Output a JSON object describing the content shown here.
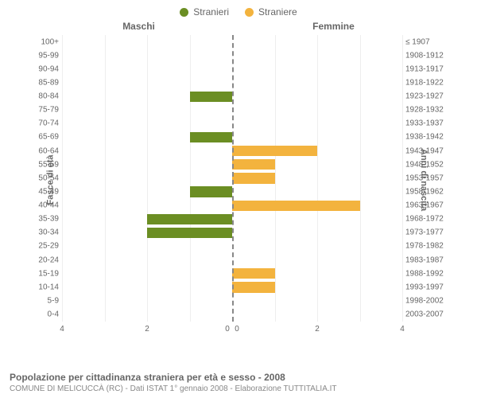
{
  "legend": [
    {
      "label": "Stranieri",
      "color": "#6b8e23"
    },
    {
      "label": "Straniere",
      "color": "#f3b33e"
    }
  ],
  "column_titles": {
    "left": "Maschi",
    "right": "Femmine"
  },
  "axis_titles": {
    "left": "Fasce di età",
    "right": "Anni di nascita"
  },
  "x_max": 4,
  "x_ticks_left": [
    4,
    2,
    0
  ],
  "x_ticks_right": [
    0,
    2,
    4
  ],
  "grid_color": "#eeeeee",
  "center_line_color": "#888888",
  "bar_color_male": "#6b8e23",
  "bar_color_female": "#f3b33e",
  "background_color": "#ffffff",
  "fontsize_tick": 10,
  "fontsize_title": 12,
  "rows": [
    {
      "age": "100+",
      "birth": "≤ 1907",
      "m": 0,
      "f": 0
    },
    {
      "age": "95-99",
      "birth": "1908-1912",
      "m": 0,
      "f": 0
    },
    {
      "age": "90-94",
      "birth": "1913-1917",
      "m": 0,
      "f": 0
    },
    {
      "age": "85-89",
      "birth": "1918-1922",
      "m": 0,
      "f": 0
    },
    {
      "age": "80-84",
      "birth": "1923-1927",
      "m": 1,
      "f": 0
    },
    {
      "age": "75-79",
      "birth": "1928-1932",
      "m": 0,
      "f": 0
    },
    {
      "age": "70-74",
      "birth": "1933-1937",
      "m": 0,
      "f": 0
    },
    {
      "age": "65-69",
      "birth": "1938-1942",
      "m": 1,
      "f": 0
    },
    {
      "age": "60-64",
      "birth": "1943-1947",
      "m": 0,
      "f": 2
    },
    {
      "age": "55-59",
      "birth": "1948-1952",
      "m": 0,
      "f": 1
    },
    {
      "age": "50-54",
      "birth": "1953-1957",
      "m": 0,
      "f": 1
    },
    {
      "age": "45-49",
      "birth": "1958-1962",
      "m": 1,
      "f": 0
    },
    {
      "age": "40-44",
      "birth": "1963-1967",
      "m": 0,
      "f": 3
    },
    {
      "age": "35-39",
      "birth": "1968-1972",
      "m": 2,
      "f": 0
    },
    {
      "age": "30-34",
      "birth": "1973-1977",
      "m": 2,
      "f": 0
    },
    {
      "age": "25-29",
      "birth": "1978-1982",
      "m": 0,
      "f": 0
    },
    {
      "age": "20-24",
      "birth": "1983-1987",
      "m": 0,
      "f": 0
    },
    {
      "age": "15-19",
      "birth": "1988-1992",
      "m": 0,
      "f": 1
    },
    {
      "age": "10-14",
      "birth": "1993-1997",
      "m": 0,
      "f": 1
    },
    {
      "age": "5-9",
      "birth": "1998-2002",
      "m": 0,
      "f": 0
    },
    {
      "age": "0-4",
      "birth": "2003-2007",
      "m": 0,
      "f": 0
    }
  ],
  "caption_main": "Popolazione per cittadinanza straniera per età e sesso - 2008",
  "caption_sub": "COMUNE DI MELICUCCÀ (RC) - Dati ISTAT 1° gennaio 2008 - Elaborazione TUTTITALIA.IT"
}
